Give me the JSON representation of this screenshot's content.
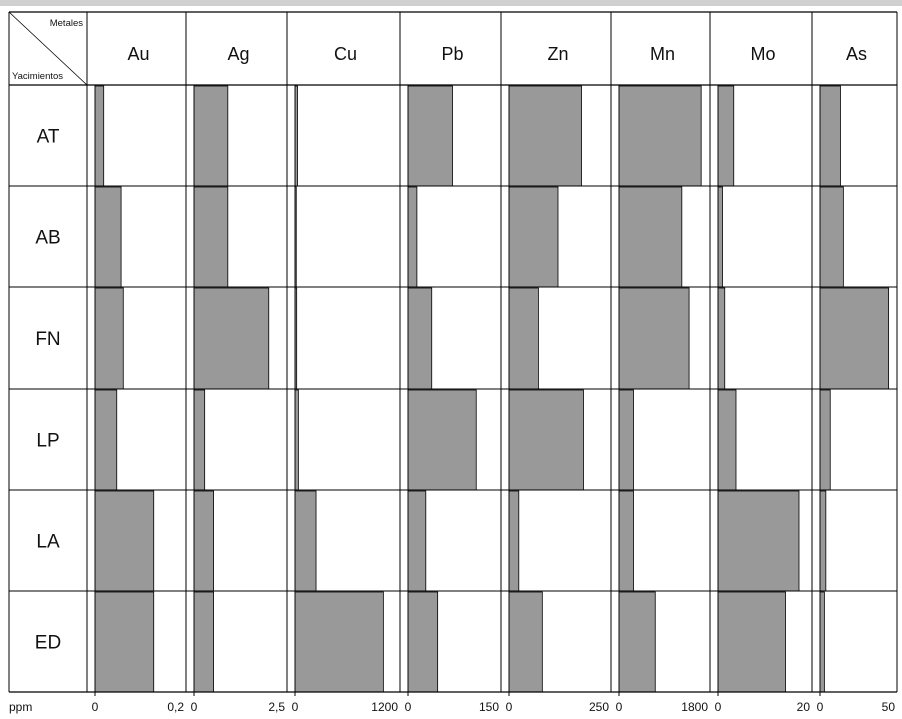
{
  "chart_data": {
    "type": "bar",
    "orientation": "horizontal",
    "corner_top_label": "Metales",
    "corner_bottom_label": "Yacimientos",
    "unit_label": "ppm",
    "rows": [
      "AT",
      "AB",
      "FN",
      "LP",
      "LA",
      "ED"
    ],
    "panels": [
      {
        "metal": "Au",
        "tick_min": "0",
        "tick_max": "0,2",
        "xlim": [
          0,
          0.2
        ],
        "values": [
          0.02,
          0.06,
          0.065,
          0.05,
          0.135,
          0.135
        ]
      },
      {
        "metal": "Ag",
        "tick_min": "0",
        "tick_max": "2,5",
        "xlim": [
          0,
          2.5
        ],
        "values": [
          0.95,
          0.95,
          2.1,
          0.3,
          0.55,
          0.55
        ]
      },
      {
        "metal": "Cu",
        "tick_min": "0",
        "tick_max": "1200",
        "xlim": [
          0,
          1200
        ],
        "values": [
          30,
          15,
          20,
          40,
          250,
          1050
        ]
      },
      {
        "metal": "Pb",
        "tick_min": "0",
        "tick_max": "150",
        "xlim": [
          0,
          150
        ],
        "values": [
          75,
          15,
          40,
          115,
          30,
          50
        ]
      },
      {
        "metal": "Zn",
        "tick_min": "0",
        "tick_max": "250",
        "xlim": [
          0,
          250
        ],
        "values": [
          185,
          125,
          75,
          190,
          25,
          85
        ]
      },
      {
        "metal": "Mn",
        "tick_min": "0",
        "tick_max": "1800",
        "xlim": [
          0,
          1800
        ],
        "values": [
          1700,
          1300,
          1450,
          300,
          300,
          750
        ]
      },
      {
        "metal": "Mo",
        "tick_min": "0",
        "tick_max": "20",
        "xlim": [
          0,
          20
        ],
        "values": [
          3.5,
          1,
          1.5,
          4,
          18,
          15
        ]
      },
      {
        "metal": "As",
        "tick_min": "0",
        "tick_max": "50",
        "xlim": [
          0,
          50
        ],
        "values": [
          14,
          16,
          47,
          7,
          4,
          3
        ]
      }
    ],
    "colors": {
      "bar": "#999999",
      "line": "#000000",
      "background": "#ffffff",
      "top_band": "#d0d0d0"
    },
    "grid": false,
    "legend": "none"
  }
}
